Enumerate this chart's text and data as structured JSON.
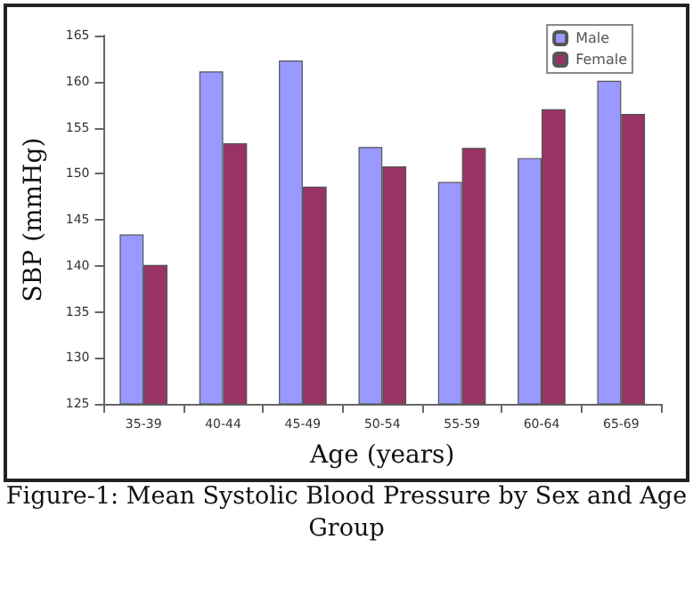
{
  "chart_data": {
    "type": "bar",
    "xlabel": "Age (years)",
    "ylabel": "SBP (mmHg)",
    "categories": [
      "35-39",
      "40-44",
      "45-49",
      "50-54",
      "55-59",
      "60-64",
      "65-69"
    ],
    "series": [
      {
        "name": "Male",
        "color": "#9999ff",
        "values": [
          143.4,
          161.1,
          162.3,
          152.9,
          149.1,
          151.7,
          160.1
        ]
      },
      {
        "name": "Female",
        "color": "#993366",
        "values": [
          140.1,
          153.3,
          148.6,
          150.8,
          152.8,
          157.0,
          156.5
        ]
      }
    ],
    "ylim": [
      125,
      165
    ],
    "yticks": [
      125,
      130,
      135,
      140,
      145,
      150,
      155,
      160,
      165
    ],
    "grid": false,
    "legend": "top right",
    "annotations": [
      "Figure-1: Mean Systolic Blood Pressure by Sex and Age Group"
    ]
  }
}
